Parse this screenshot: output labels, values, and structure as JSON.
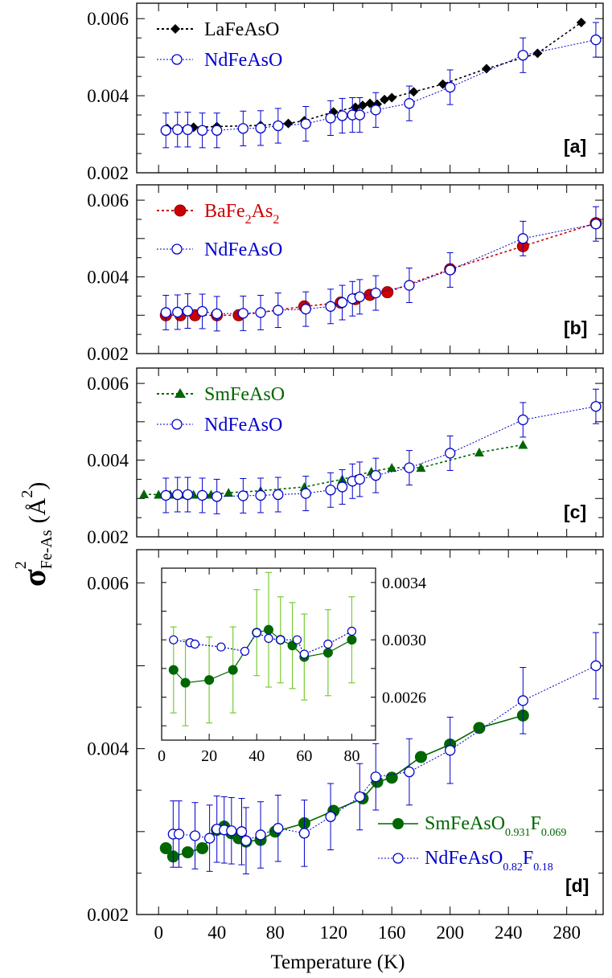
{
  "y_axis_label": {
    "sigma": "σ",
    "exponent": "2",
    "subscript": "Fe-As",
    "open": "(",
    "unit": "Å",
    "unit_exponent": "2",
    "close": ")"
  },
  "x_axis_label": "Temperature (K)",
  "chart_data": [
    {
      "type": "line",
      "panel": "[a]",
      "xlim": [
        -15,
        305
      ],
      "ylim": [
        0.002,
        0.0064
      ],
      "yticks": [
        "0.002",
        "0.004",
        "0.006"
      ],
      "ytick_values": [
        0.002,
        0.004,
        0.006
      ],
      "series": [
        {
          "name": "LaFeAsO",
          "color": "#000000",
          "marker": "diamond-filled",
          "line": "dotted",
          "x": [
            6,
            24,
            40,
            70,
            89,
            100,
            120,
            135,
            140,
            145,
            150,
            155,
            160,
            175,
            195,
            225,
            260,
            290
          ],
          "y": [
            0.00315,
            0.00318,
            0.0032,
            0.00323,
            0.00328,
            0.00335,
            0.00358,
            0.0037,
            0.00375,
            0.0038,
            0.00378,
            0.0039,
            0.00395,
            0.0041,
            0.0043,
            0.0047,
            0.0051,
            0.0059
          ]
        },
        {
          "name": "NdFeAsO",
          "color": "#0000cc",
          "marker": "circle-open",
          "line": "dotted",
          "x": [
            5,
            13,
            20,
            30,
            40,
            58,
            70,
            82,
            101,
            118,
            126,
            133,
            138,
            149,
            172,
            200,
            250,
            300
          ],
          "y": [
            0.0031,
            0.00312,
            0.00312,
            0.0031,
            0.0031,
            0.00315,
            0.00316,
            0.00322,
            0.00327,
            0.00342,
            0.00348,
            0.0035,
            0.0035,
            0.00363,
            0.0038,
            0.00422,
            0.00505,
            0.00545
          ],
          "err": [
            0.00045,
            0.00045,
            0.00045,
            0.00045,
            0.00045,
            0.00045,
            0.00045,
            0.00045,
            0.00045,
            0.00045,
            0.00045,
            0.00045,
            0.00045,
            0.00045,
            0.00045,
            0.00045,
            0.00045,
            0.00045
          ]
        }
      ]
    },
    {
      "type": "line",
      "panel": "[b]",
      "xlim": [
        -15,
        305
      ],
      "ylim": [
        0.002,
        0.0064
      ],
      "yticks": [
        "0.002",
        "0.004",
        "0.006"
      ],
      "ytick_values": [
        0.002,
        0.004,
        0.006
      ],
      "series": [
        {
          "name_base": "BaFe",
          "name_sub1": "2",
          "name_mid": "As",
          "name_sub2": "2",
          "color": "#cc0000",
          "marker": "circle-filled",
          "line": "dotted",
          "x": [
            5,
            15,
            25,
            40,
            55,
            100,
            125,
            135,
            145,
            157,
            200,
            250,
            300
          ],
          "y": [
            0.003,
            0.003,
            0.003,
            0.003,
            0.003,
            0.00323,
            0.00333,
            0.00342,
            0.00353,
            0.0036,
            0.0042,
            0.0048,
            0.0054
          ]
        },
        {
          "name": "NdFeAsO",
          "color": "#0000cc",
          "marker": "circle-open",
          "line": "dotted",
          "x": [
            5,
            13,
            20,
            30,
            40,
            58,
            70,
            82,
            101,
            118,
            126,
            133,
            138,
            149,
            172,
            200,
            250,
            300
          ],
          "y": [
            0.00307,
            0.00308,
            0.00311,
            0.0031,
            0.00304,
            0.00305,
            0.00307,
            0.00313,
            0.00316,
            0.00323,
            0.00333,
            0.00343,
            0.00348,
            0.00358,
            0.00378,
            0.00418,
            0.005,
            0.00538
          ],
          "err": [
            0.00045,
            0.00045,
            0.00045,
            0.00045,
            0.00045,
            0.00045,
            0.00045,
            0.00045,
            0.00045,
            0.00045,
            0.00045,
            0.00045,
            0.00045,
            0.00045,
            0.00045,
            0.00045,
            0.00045,
            0.00045
          ]
        }
      ]
    },
    {
      "type": "line",
      "panel": "[c]",
      "xlim": [
        -15,
        305
      ],
      "ylim": [
        0.002,
        0.0064
      ],
      "yticks": [
        "0.002",
        "0.004",
        "0.006"
      ],
      "ytick_values": [
        0.002,
        0.004,
        0.006
      ],
      "series": [
        {
          "name": "SmFeAsO",
          "color": "#006600",
          "marker": "triangle-filled",
          "line": "dotted",
          "x": [
            -10,
            0,
            8,
            15,
            24,
            36,
            48,
            70,
            100,
            126,
            146,
            160,
            180,
            220,
            250
          ],
          "y": [
            0.00311,
            0.0031,
            0.0031,
            0.0031,
            0.0031,
            0.0031,
            0.00315,
            0.0032,
            0.0033,
            0.0035,
            0.0037,
            0.0038,
            0.0038,
            0.0042,
            0.0044
          ],
          "y_extra": []
        },
        {
          "name": "NdFeAsO",
          "color": "#0000cc",
          "marker": "circle-open",
          "line": "dotted",
          "x": [
            5,
            13,
            20,
            30,
            40,
            58,
            70,
            82,
            101,
            118,
            126,
            133,
            138,
            149,
            172,
            200,
            250,
            300
          ],
          "y": [
            0.00308,
            0.0031,
            0.0031,
            0.00308,
            0.00305,
            0.00307,
            0.00308,
            0.0031,
            0.00313,
            0.00322,
            0.0033,
            0.00345,
            0.0035,
            0.0036,
            0.0038,
            0.00418,
            0.00505,
            0.0054
          ],
          "err": [
            0.00045,
            0.00045,
            0.00045,
            0.00045,
            0.00045,
            0.00045,
            0.00045,
            0.00045,
            0.00045,
            0.00045,
            0.00045,
            0.00045,
            0.00045,
            0.00045,
            0.00045,
            0.00045,
            0.00045,
            0.00045
          ]
        }
      ]
    },
    {
      "type": "line",
      "panel": "[d]",
      "xlim": [
        -15,
        305
      ],
      "ylim": [
        0.002,
        0.0064
      ],
      "xticks": [
        "0",
        "40",
        "80",
        "120",
        "160",
        "200",
        "240",
        "280"
      ],
      "xtick_values": [
        0,
        40,
        80,
        120,
        160,
        200,
        240,
        280
      ],
      "yticks": [
        "0.002",
        "0.004",
        "0.006"
      ],
      "ytick_values": [
        0.002,
        0.004,
        0.006
      ],
      "series": [
        {
          "name_base": "SmFeAsO",
          "name_sub1": "0.931",
          "name_mid": "F",
          "name_sub2": "0.069",
          "color": "#006600",
          "marker": "circle-filled",
          "line": "solid",
          "x": [
            5,
            10,
            20,
            30,
            40,
            45,
            50,
            55,
            60,
            70,
            80,
            100,
            120,
            140,
            150,
            160,
            180,
            200,
            220,
            250
          ],
          "y": [
            0.0028,
            0.0027,
            0.00275,
            0.0028,
            0.00302,
            0.00306,
            0.00298,
            0.00292,
            0.00288,
            0.0029,
            0.003,
            0.0031,
            0.00325,
            0.0034,
            0.0036,
            0.00365,
            0.0039,
            0.00405,
            0.00425,
            0.0044
          ]
        },
        {
          "name_base": "NdFeAsO",
          "name_sub1": "0.82",
          "name_mid": "F",
          "name_sub2": "0.18",
          "color": "#0000cc",
          "marker": "circle-open",
          "line": "dotted",
          "x": [
            10,
            14,
            25,
            35,
            40,
            45,
            50,
            57,
            60,
            70,
            82,
            100,
            118,
            138,
            149,
            172,
            200,
            250,
            300
          ],
          "y": [
            0.00297,
            0.00297,
            0.00295,
            0.00292,
            0.00303,
            0.00302,
            0.00301,
            0.003,
            0.00289,
            0.00296,
            0.00304,
            0.00298,
            0.00318,
            0.00342,
            0.00366,
            0.00372,
            0.00398,
            0.00458,
            0.005
          ],
          "err": [
            0.0004,
            0.0004,
            0.0004,
            0.0004,
            0.0004,
            0.0004,
            0.0004,
            0.0004,
            0.0004,
            0.0004,
            0.0004,
            0.0004,
            0.0004,
            0.0004,
            0.0004,
            0.0004,
            0.0004,
            0.0004,
            0.0004
          ]
        }
      ],
      "inset": {
        "xlim": [
          0,
          90
        ],
        "ylim": [
          0.0023,
          0.0035
        ],
        "xticks": [
          "0",
          "20",
          "40",
          "60",
          "80"
        ],
        "xtick_values": [
          0,
          20,
          40,
          60,
          80
        ],
        "yticks": [
          "0.0026",
          "0.0030",
          "0.0034"
        ],
        "ytick_values": [
          0.0026,
          0.003,
          0.0034
        ],
        "series": [
          {
            "color": "#006600",
            "errcolor": "#77cc33",
            "marker": "circle-filled",
            "line": "solid",
            "x": [
              5,
              10,
              20,
              30,
              40,
              45,
              50,
              55,
              60,
              70,
              80
            ],
            "y": [
              0.00279,
              0.0027,
              0.00272,
              0.00279,
              0.00305,
              0.00307,
              0.003,
              0.00296,
              0.00288,
              0.00291,
              0.003
            ],
            "err": [
              0.0003,
              0.0003,
              0.0003,
              0.0003,
              0.0003,
              0.0004,
              0.0003,
              0.0003,
              0.0003,
              0.0003,
              0.0003
            ]
          },
          {
            "color": "#0000cc",
            "marker": "circle-open",
            "line": "dotted",
            "x": [
              5,
              12,
              14,
              25,
              35,
              40,
              45,
              50,
              57,
              60,
              70,
              80
            ],
            "y": [
              0.003,
              0.00298,
              0.00297,
              0.00295,
              0.00292,
              0.00305,
              0.00301,
              0.003,
              0.003,
              0.0029,
              0.00297,
              0.00306
            ]
          }
        ]
      }
    }
  ]
}
